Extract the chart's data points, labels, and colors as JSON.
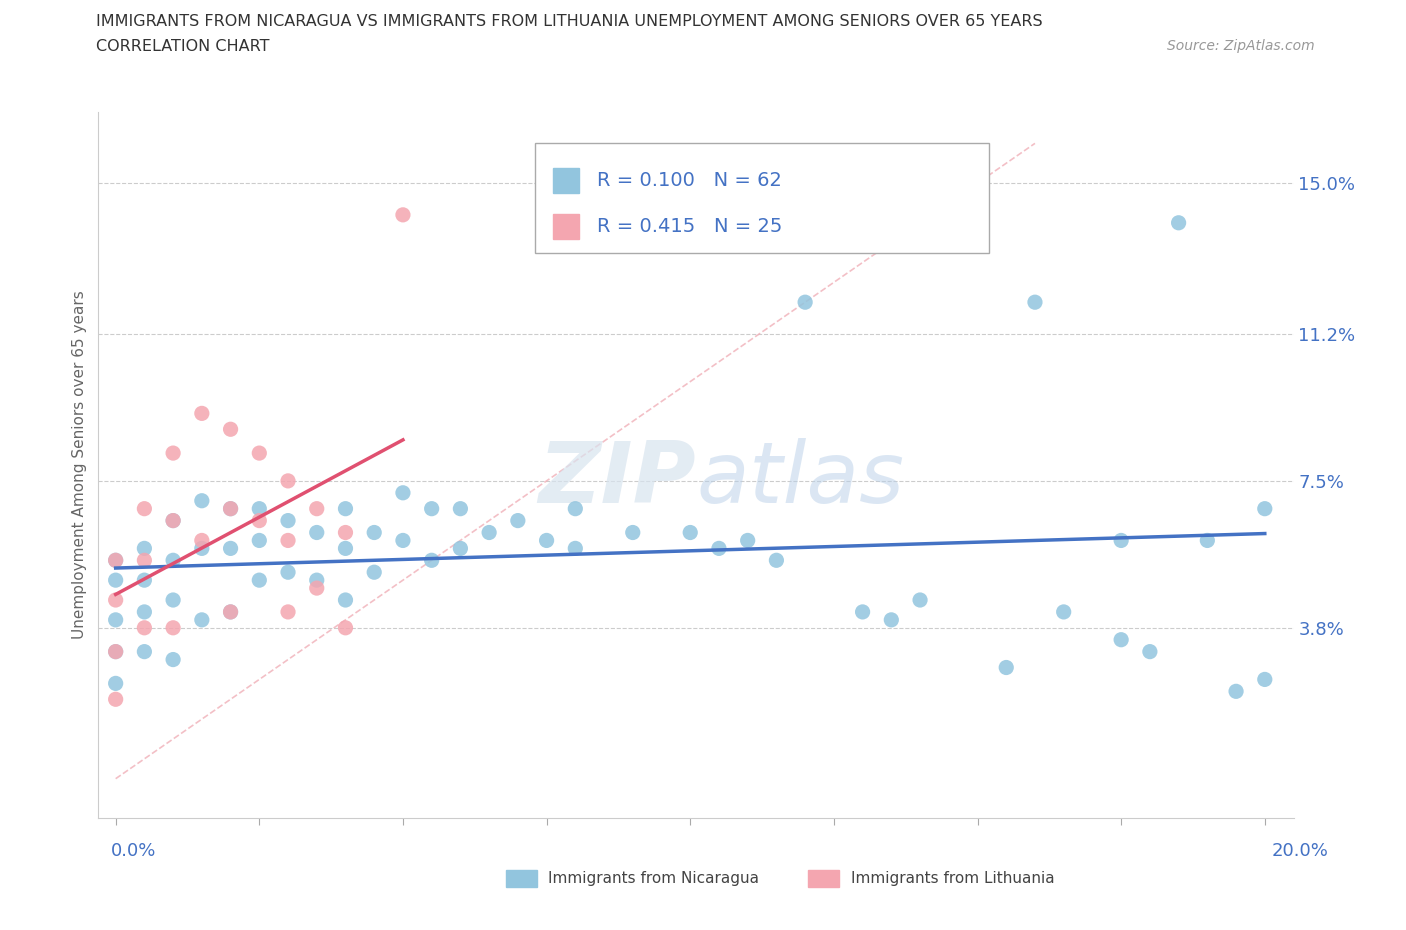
{
  "title_line1": "IMMIGRANTS FROM NICARAGUA VS IMMIGRANTS FROM LITHUANIA UNEMPLOYMENT AMONG SENIORS OVER 65 YEARS",
  "title_line2": "CORRELATION CHART",
  "source": "Source: ZipAtlas.com",
  "ylabel": "Unemployment Among Seniors over 65 years",
  "ytick_labels": [
    "3.8%",
    "7.5%",
    "11.2%",
    "15.0%"
  ],
  "ytick_values": [
    0.038,
    0.075,
    0.112,
    0.15
  ],
  "xlim": [
    0.0,
    0.2
  ],
  "ylim": [
    0.0,
    0.165
  ],
  "color_nicaragua": "#92c5de",
  "color_lithuania": "#f4a6b0",
  "color_nicaragua_line": "#4472c4",
  "color_lithuania_line": "#e05070",
  "color_diagonal": "#f0b0b8",
  "nicaragua_x": [
    0.0,
    0.0,
    0.0,
    0.0,
    0.0,
    0.005,
    0.005,
    0.005,
    0.005,
    0.01,
    0.01,
    0.01,
    0.01,
    0.015,
    0.015,
    0.015,
    0.02,
    0.02,
    0.02,
    0.025,
    0.025,
    0.025,
    0.03,
    0.03,
    0.035,
    0.035,
    0.04,
    0.04,
    0.04,
    0.045,
    0.045,
    0.05,
    0.05,
    0.055,
    0.055,
    0.06,
    0.06,
    0.065,
    0.07,
    0.075,
    0.08,
    0.08,
    0.09,
    0.1,
    0.105,
    0.11,
    0.115,
    0.12,
    0.13,
    0.135,
    0.14,
    0.155,
    0.16,
    0.175,
    0.185,
    0.19,
    0.195,
    0.2,
    0.2,
    0.165,
    0.175,
    0.18
  ],
  "nicaragua_y": [
    0.055,
    0.05,
    0.04,
    0.032,
    0.024,
    0.058,
    0.05,
    0.042,
    0.032,
    0.065,
    0.055,
    0.045,
    0.03,
    0.07,
    0.058,
    0.04,
    0.068,
    0.058,
    0.042,
    0.068,
    0.06,
    0.05,
    0.065,
    0.052,
    0.062,
    0.05,
    0.068,
    0.058,
    0.045,
    0.062,
    0.052,
    0.072,
    0.06,
    0.068,
    0.055,
    0.068,
    0.058,
    0.062,
    0.065,
    0.06,
    0.068,
    0.058,
    0.062,
    0.062,
    0.058,
    0.06,
    0.055,
    0.12,
    0.042,
    0.04,
    0.045,
    0.028,
    0.12,
    0.06,
    0.14,
    0.06,
    0.022,
    0.068,
    0.025,
    0.042,
    0.035,
    0.032
  ],
  "lithuania_x": [
    0.0,
    0.0,
    0.0,
    0.0,
    0.005,
    0.005,
    0.005,
    0.01,
    0.01,
    0.01,
    0.015,
    0.015,
    0.02,
    0.02,
    0.02,
    0.025,
    0.025,
    0.03,
    0.03,
    0.03,
    0.035,
    0.035,
    0.04,
    0.04,
    0.05
  ],
  "lithuania_y": [
    0.055,
    0.045,
    0.032,
    0.02,
    0.068,
    0.055,
    0.038,
    0.082,
    0.065,
    0.038,
    0.092,
    0.06,
    0.088,
    0.068,
    0.042,
    0.082,
    0.065,
    0.075,
    0.06,
    0.042,
    0.068,
    0.048,
    0.062,
    0.038,
    0.142
  ]
}
